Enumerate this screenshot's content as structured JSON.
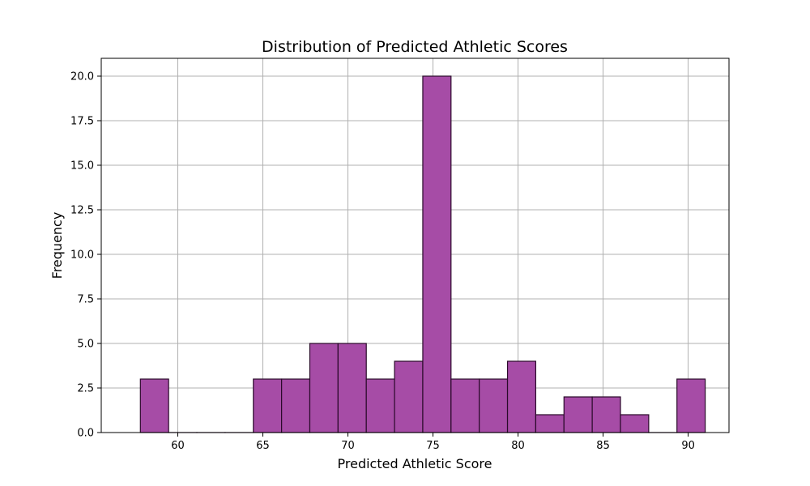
{
  "chart_data": {
    "type": "bar",
    "title": "Distribution of Predicted Athletic Scores",
    "xlabel": "Predicted Athletic Score",
    "ylabel": "Frequency",
    "xlim": [
      55.5,
      92.4
    ],
    "ylim": [
      0,
      21
    ],
    "x_ticks": [
      60,
      65,
      70,
      75,
      80,
      85,
      90
    ],
    "y_ticks": [
      0.0,
      2.5,
      5.0,
      7.5,
      10.0,
      12.5,
      15.0,
      17.5,
      20.0
    ],
    "bin_edges": [
      57.8,
      59.46,
      61.12,
      62.78,
      64.44,
      66.1,
      67.76,
      69.42,
      71.08,
      72.74,
      74.4,
      76.06,
      77.72,
      79.38,
      81.04,
      82.7,
      84.36,
      86.02,
      87.68,
      89.34,
      91.0
    ],
    "values": [
      3,
      0,
      0,
      0,
      3,
      3,
      5,
      5,
      3,
      4,
      20,
      3,
      3,
      4,
      1,
      2,
      2,
      1,
      0,
      3
    ],
    "bar_color": "#a64ca6",
    "edge_color": "#2a0a2a",
    "grid": true
  }
}
